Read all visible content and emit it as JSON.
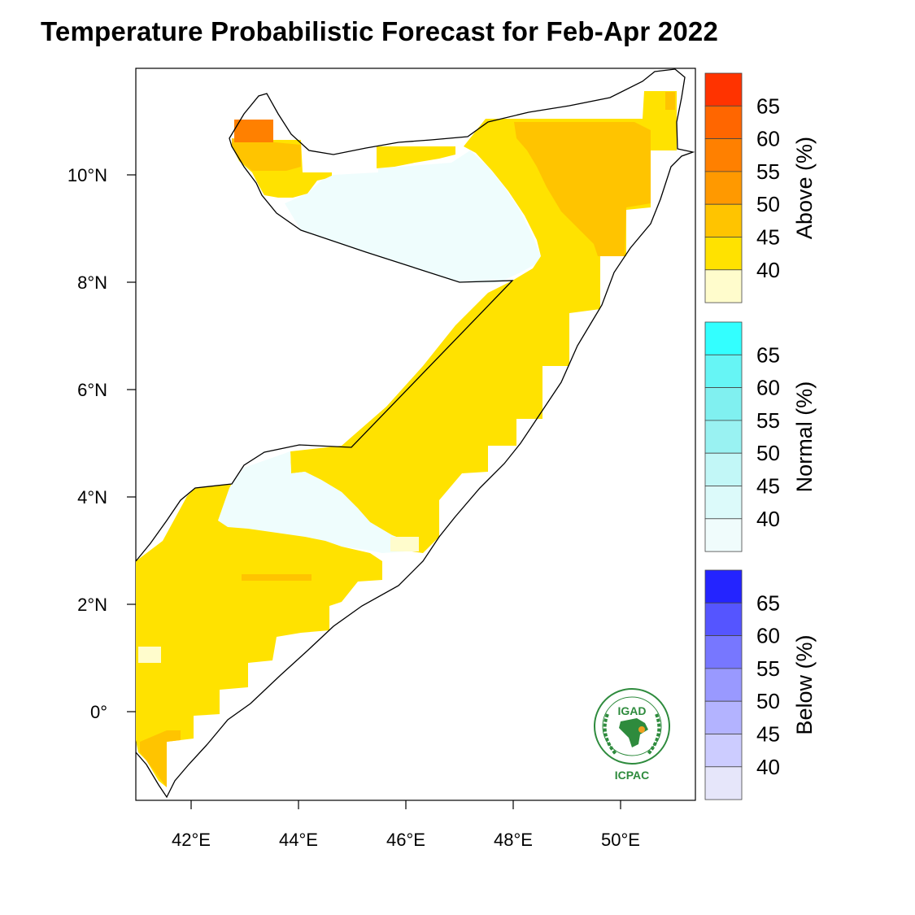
{
  "title": "Temperature Probabilistic Forecast for Feb-Apr 2022",
  "map": {
    "region": "Somalia",
    "lon_ticks": [
      "42°E",
      "44°E",
      "46°E",
      "48°E",
      "50°E"
    ],
    "lat_ticks": [
      "10°N",
      "8°N",
      "6°N",
      "4°N",
      "2°N",
      "0°"
    ]
  },
  "colorbars": [
    {
      "category": "Above (%)",
      "levels": [
        "65",
        "60",
        "55",
        "50",
        "45",
        "40"
      ],
      "colors": [
        "#ff3300",
        "#ff6600",
        "#ff8000",
        "#ff9900",
        "#ffc400",
        "#ffe200",
        "#fffccc"
      ]
    },
    {
      "category": "Normal (%)",
      "levels": [
        "65",
        "60",
        "55",
        "50",
        "45",
        "40"
      ],
      "colors": [
        "#33ffff",
        "#66f5f5",
        "#80f0f0",
        "#99f2f2",
        "#c2f7f7",
        "#dcfafa",
        "#f0fcfc"
      ]
    },
    {
      "category": "Below (%)",
      "levels": [
        "65",
        "60",
        "55",
        "50",
        "45",
        "40"
      ],
      "colors": [
        "#2424ff",
        "#5555ff",
        "#7777ff",
        "#9999ff",
        "#b3b3ff",
        "#ccccff",
        "#e6e6fa"
      ]
    }
  ],
  "colors": {
    "cat_above_40": "#ffe200",
    "cat_above_45": "#ffc400",
    "cat_above_55": "#ff8000",
    "cat_normal_40": "#effdfd",
    "logo_green": "#2e8b3d"
  },
  "logo": {
    "top_text": "IGAD",
    "bottom_text": "ICPAC"
  }
}
